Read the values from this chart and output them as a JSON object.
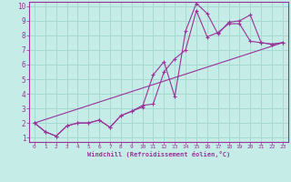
{
  "xlabel": "Windchill (Refroidissement éolien,°C)",
  "bg_color": "#c5ece6",
  "grid_color": "#a8d8d2",
  "line_color": "#993399",
  "x_data": [
    0,
    1,
    2,
    3,
    4,
    5,
    6,
    7,
    8,
    9,
    10,
    11,
    12,
    13,
    14,
    15,
    16,
    17,
    18,
    19,
    20,
    21,
    22,
    23
  ],
  "line1_y": [
    2.0,
    1.4,
    1.1,
    1.8,
    2.0,
    2.0,
    2.2,
    1.7,
    2.5,
    2.8,
    3.1,
    5.3,
    6.2,
    3.8,
    8.3,
    10.2,
    9.5,
    8.1,
    8.9,
    9.0,
    9.4,
    7.5,
    7.4,
    7.5
  ],
  "line2_y": [
    2.0,
    1.4,
    1.1,
    1.8,
    2.0,
    2.0,
    2.2,
    1.7,
    2.5,
    2.8,
    3.2,
    3.3,
    5.5,
    6.4,
    7.0,
    9.7,
    7.9,
    8.2,
    8.8,
    8.8,
    7.6,
    7.5,
    7.4,
    7.5
  ],
  "trend_x": [
    0,
    23
  ],
  "trend_y": [
    2.0,
    7.5
  ],
  "ylim": [
    1,
    10
  ],
  "xlim": [
    0,
    23
  ],
  "yticks": [
    1,
    2,
    3,
    4,
    5,
    6,
    7,
    8,
    9,
    10
  ],
  "xticks": [
    0,
    1,
    2,
    3,
    4,
    5,
    6,
    7,
    8,
    9,
    10,
    11,
    12,
    13,
    14,
    15,
    16,
    17,
    18,
    19,
    20,
    21,
    22,
    23
  ]
}
